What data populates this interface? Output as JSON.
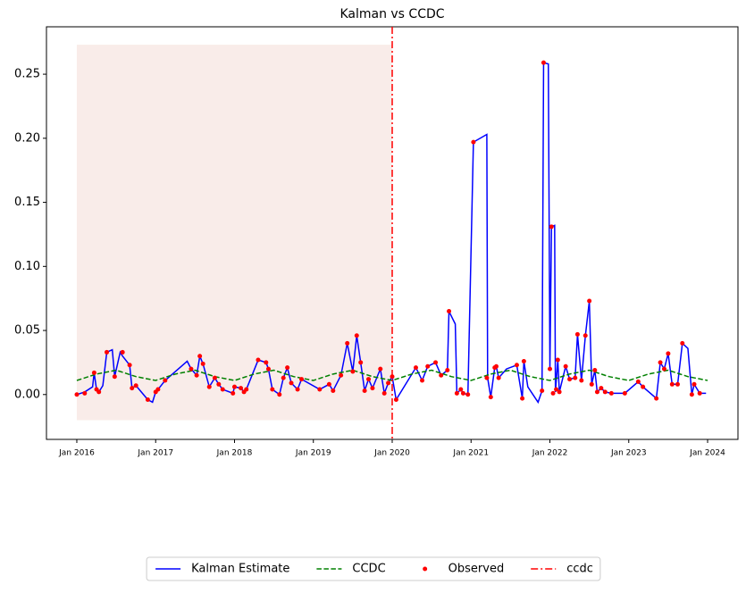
{
  "chart_data": {
    "type": "line",
    "title": "Kalman vs CCDC",
    "xlim": [
      2015.615,
      2024.385
    ],
    "xticks": [
      {
        "value": 2016,
        "label": "Jan 2016"
      },
      {
        "value": 2017,
        "label": "Jan 2017"
      },
      {
        "value": 2018,
        "label": "Jan 2018"
      },
      {
        "value": 2019,
        "label": "Jan 2019"
      },
      {
        "value": 2020,
        "label": "Jan 2020"
      },
      {
        "value": 2021,
        "label": "Jan 2021"
      },
      {
        "value": 2022,
        "label": "Jan 2022"
      },
      {
        "value": 2023,
        "label": "Jan 2023"
      },
      {
        "value": 2024,
        "label": "Jan 2024"
      }
    ],
    "ylim": [
      -0.035,
      0.287
    ],
    "yticks": [
      {
        "value": 0,
        "label": "0.00"
      },
      {
        "value": 0.05,
        "label": "0.05"
      },
      {
        "value": 0.1,
        "label": "0.10"
      },
      {
        "value": 0.15,
        "label": "0.15"
      },
      {
        "value": 0.2,
        "label": "0.20"
      },
      {
        "value": 0.25,
        "label": "0.25"
      }
    ],
    "span": {
      "x": [
        2016,
        2020
      ],
      "y": [
        -0.02,
        0.273
      ],
      "color": "#f9ece9"
    },
    "series": [
      {
        "name": "Kalman Estimate",
        "style": "line",
        "color": "#0000ff",
        "x": [
          2016.0,
          2016.1,
          2016.2,
          2016.22,
          2016.25,
          2016.28,
          2016.33,
          2016.38,
          2016.45,
          2016.48,
          2016.55,
          2016.58,
          2016.67,
          2016.7,
          2016.75,
          2016.9,
          2016.96,
          2017.0,
          2017.03,
          2017.12,
          2017.4,
          2017.45,
          2017.52,
          2017.56,
          2017.6,
          2017.68,
          2017.75,
          2017.8,
          2017.85,
          2017.98,
          2018.0,
          2018.08,
          2018.12,
          2018.15,
          2018.3,
          2018.4,
          2018.43,
          2018.48,
          2018.57,
          2018.62,
          2018.67,
          2018.72,
          2018.8,
          2018.85,
          2019.08,
          2019.2,
          2019.25,
          2019.35,
          2019.43,
          2019.5,
          2019.55,
          2019.6,
          2019.65,
          2019.7,
          2019.75,
          2019.85,
          2019.9,
          2019.95,
          2020.0,
          2020.05,
          2020.3,
          2020.38,
          2020.45,
          2020.55,
          2020.62,
          2020.7,
          2020.72,
          2020.8,
          2020.82,
          2020.87,
          2020.9,
          2020.96,
          2021.03,
          2021.2,
          2021.21,
          2021.25,
          2021.3,
          2021.32,
          2021.35,
          2021.45,
          2021.58,
          2021.65,
          2021.67,
          2021.72,
          2021.85,
          2021.9,
          2021.92,
          2021.98,
          2022.0,
          2022.02,
          2022.06,
          2022.07,
          2022.1,
          2022.12,
          2022.2,
          2022.25,
          2022.32,
          2022.35,
          2022.4,
          2022.45,
          2022.5,
          2022.53,
          2022.57,
          2022.6,
          2022.65,
          2022.7,
          2022.78,
          2022.95,
          2023.12,
          2023.18,
          2023.35,
          2023.4,
          2023.45,
          2023.5,
          2023.55,
          2023.62,
          2023.68,
          2023.75,
          2023.8,
          2023.83,
          2023.9,
          2023.98
        ],
        "values": [
          0.0,
          0.002,
          0.006,
          0.017,
          0.004,
          0.002,
          0.007,
          0.033,
          0.035,
          0.014,
          0.033,
          0.03,
          0.023,
          0.005,
          0.007,
          -0.004,
          -0.006,
          0.002,
          0.004,
          0.011,
          0.026,
          0.02,
          0.015,
          0.03,
          0.024,
          0.006,
          0.013,
          0.008,
          0.004,
          0.001,
          0.006,
          0.005,
          0.002,
          0.004,
          0.027,
          0.025,
          0.02,
          0.004,
          0.0,
          0.013,
          0.021,
          0.009,
          0.004,
          0.012,
          0.004,
          0.008,
          0.003,
          0.015,
          0.04,
          0.018,
          0.046,
          0.025,
          0.003,
          0.012,
          0.005,
          0.02,
          0.001,
          0.009,
          0.014,
          -0.004,
          0.021,
          0.011,
          0.022,
          0.025,
          0.015,
          0.019,
          0.065,
          0.055,
          0.001,
          0.004,
          0.001,
          0.0,
          0.197,
          0.203,
          0.013,
          -0.002,
          0.021,
          0.022,
          0.013,
          0.02,
          0.023,
          -0.003,
          0.026,
          0.006,
          -0.006,
          0.003,
          0.259,
          0.258,
          0.02,
          0.131,
          0.132,
          0.002,
          0.027,
          0.002,
          0.022,
          0.012,
          0.013,
          0.047,
          0.011,
          0.046,
          0.073,
          0.008,
          0.019,
          0.002,
          0.005,
          0.002,
          0.001,
          0.001,
          0.01,
          0.006,
          -0.003,
          0.025,
          0.02,
          0.032,
          0.008,
          0.008,
          0.04,
          0.036,
          0.0,
          0.008,
          0.001,
          0.001
        ]
      },
      {
        "name": "CCDC",
        "style": "dashed",
        "color": "#008000",
        "x": [
          2016.0,
          2016.25,
          2016.5,
          2016.75,
          2017.0,
          2017.25,
          2017.5,
          2017.75,
          2018.0,
          2018.25,
          2018.5,
          2018.75,
          2019.0,
          2019.25,
          2019.5,
          2019.75,
          2020.0,
          2020.25,
          2020.5,
          2020.75,
          2021.0,
          2021.25,
          2021.5,
          2021.75,
          2022.0,
          2022.25,
          2022.5,
          2022.75,
          2023.0,
          2023.25,
          2023.5,
          2023.75,
          2024.0
        ],
        "values": [
          0.011,
          0.016,
          0.019,
          0.014,
          0.011,
          0.016,
          0.019,
          0.014,
          0.011,
          0.016,
          0.019,
          0.014,
          0.011,
          0.016,
          0.019,
          0.014,
          0.011,
          0.016,
          0.019,
          0.014,
          0.011,
          0.016,
          0.019,
          0.014,
          0.011,
          0.016,
          0.019,
          0.014,
          0.011,
          0.016,
          0.019,
          0.014,
          0.011
        ]
      },
      {
        "name": "Observed",
        "style": "scatter",
        "color": "#ff0000",
        "x": [
          2016.0,
          2016.1,
          2016.22,
          2016.25,
          2016.28,
          2016.38,
          2016.48,
          2016.58,
          2016.67,
          2016.7,
          2016.75,
          2016.9,
          2017.0,
          2017.03,
          2017.12,
          2017.45,
          2017.52,
          2017.56,
          2017.6,
          2017.68,
          2017.75,
          2017.8,
          2017.85,
          2017.98,
          2018.0,
          2018.08,
          2018.12,
          2018.15,
          2018.3,
          2018.4,
          2018.43,
          2018.48,
          2018.57,
          2018.62,
          2018.67,
          2018.72,
          2018.8,
          2018.85,
          2019.08,
          2019.2,
          2019.25,
          2019.35,
          2019.43,
          2019.5,
          2019.55,
          2019.6,
          2019.65,
          2019.7,
          2019.75,
          2019.85,
          2019.9,
          2019.95,
          2020.0,
          2020.05,
          2020.3,
          2020.38,
          2020.45,
          2020.55,
          2020.62,
          2020.7,
          2020.72,
          2020.82,
          2020.87,
          2020.9,
          2020.96,
          2021.03,
          2021.2,
          2021.25,
          2021.3,
          2021.32,
          2021.35,
          2021.58,
          2021.65,
          2021.67,
          2021.9,
          2021.92,
          2022.0,
          2022.02,
          2022.04,
          2022.08,
          2022.1,
          2022.12,
          2022.2,
          2022.25,
          2022.32,
          2022.35,
          2022.4,
          2022.45,
          2022.5,
          2022.53,
          2022.57,
          2022.6,
          2022.65,
          2022.7,
          2022.78,
          2022.95,
          2023.12,
          2023.18,
          2023.35,
          2023.4,
          2023.45,
          2023.5,
          2023.55,
          2023.62,
          2023.68,
          2023.8,
          2023.83,
          2023.9
        ],
        "values": [
          0.0,
          0.001,
          0.017,
          0.004,
          0.002,
          0.033,
          0.014,
          0.033,
          0.023,
          0.005,
          0.007,
          -0.004,
          0.002,
          0.004,
          0.011,
          0.02,
          0.015,
          0.03,
          0.024,
          0.006,
          0.013,
          0.008,
          0.004,
          0.001,
          0.006,
          0.005,
          0.002,
          0.004,
          0.027,
          0.025,
          0.02,
          0.004,
          0.0,
          0.013,
          0.021,
          0.009,
          0.004,
          0.012,
          0.004,
          0.008,
          0.003,
          0.015,
          0.04,
          0.018,
          0.046,
          0.025,
          0.003,
          0.012,
          0.005,
          0.02,
          0.001,
          0.009,
          0.014,
          -0.004,
          0.021,
          0.011,
          0.022,
          0.025,
          0.015,
          0.019,
          0.065,
          0.001,
          0.004,
          0.001,
          0.0,
          0.197,
          0.013,
          -0.002,
          0.021,
          0.022,
          0.013,
          0.023,
          -0.003,
          0.026,
          0.003,
          0.259,
          0.02,
          0.131,
          0.001,
          0.004,
          0.027,
          0.002,
          0.022,
          0.012,
          0.013,
          0.047,
          0.011,
          0.046,
          0.073,
          0.008,
          0.019,
          0.002,
          0.005,
          0.002,
          0.001,
          0.001,
          0.01,
          0.006,
          -0.003,
          0.025,
          0.02,
          0.032,
          0.008,
          0.008,
          0.04,
          0.0,
          0.008,
          0.001
        ]
      },
      {
        "name": "ccdc",
        "style": "vline",
        "color": "#ff0000",
        "x": [
          2020.0
        ]
      }
    ],
    "legend": "bottom"
  }
}
